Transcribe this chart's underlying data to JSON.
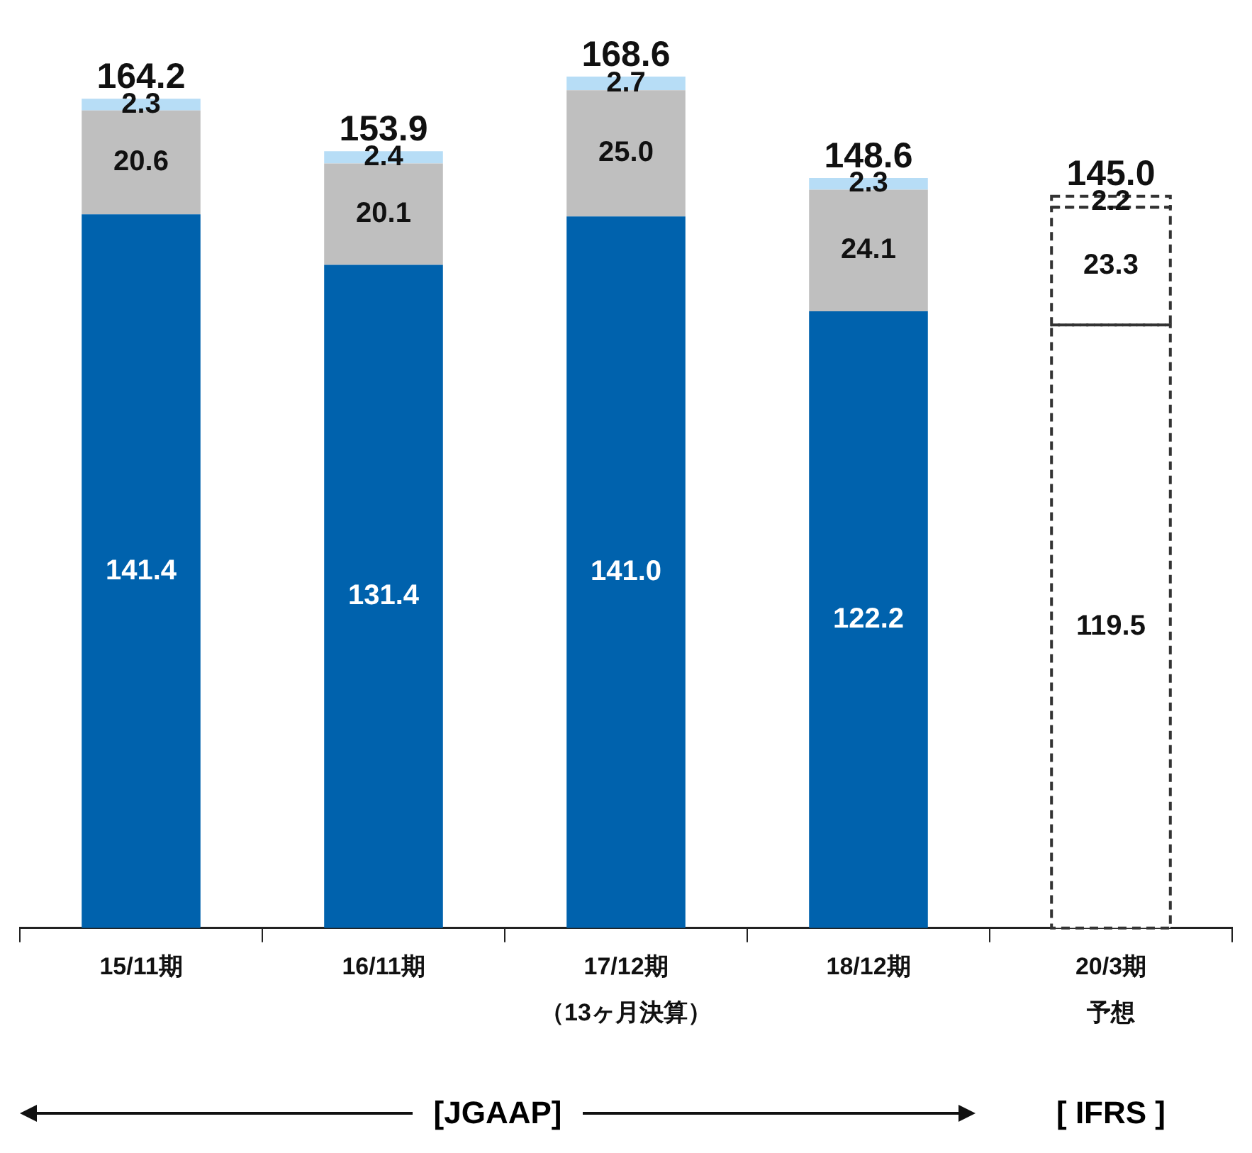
{
  "chart_data": {
    "type": "bar",
    "stacked": true,
    "grid": false,
    "legend": false,
    "categories": [
      "15/11期",
      "16/11期",
      "17/12期（13ヶ月決算）",
      "18/12期",
      "20/3期予想"
    ],
    "series": [
      {
        "colors": [
          "#0062ad",
          "#0062ad",
          "#0062ad",
          "#0062ad",
          "#ffffff"
        ],
        "values": [
          141.4,
          131.4,
          141.0,
          122.2,
          119.5
        ],
        "value_labels": [
          "141.4",
          "131.4",
          "141.0",
          "122.2",
          "119.5"
        ]
      },
      {
        "colors": [
          "#bfbfbf",
          "#bfbfbf",
          "#bfbfbf",
          "#bfbfbf",
          "#ffffff"
        ],
        "values": [
          20.6,
          20.1,
          25.0,
          24.1,
          23.3
        ],
        "value_labels": [
          "20.6",
          "20.1",
          "25.0",
          "24.1",
          "23.3"
        ]
      },
      {
        "colors": [
          "#b7ddf6",
          "#b7ddf6",
          "#b7ddf6",
          "#b7ddf6",
          "#ffffff"
        ],
        "values": [
          2.3,
          2.4,
          2.7,
          2.3,
          2.2
        ],
        "value_labels": [
          "2.3",
          "2.4",
          "2.7",
          "2.3",
          "2.2"
        ]
      }
    ],
    "totals": [
      "164.2",
      "153.9",
      "168.6",
      "148.6",
      "145.0"
    ],
    "annotations": [
      "[JGAAP]",
      "[ IFRS ]"
    ]
  }
}
